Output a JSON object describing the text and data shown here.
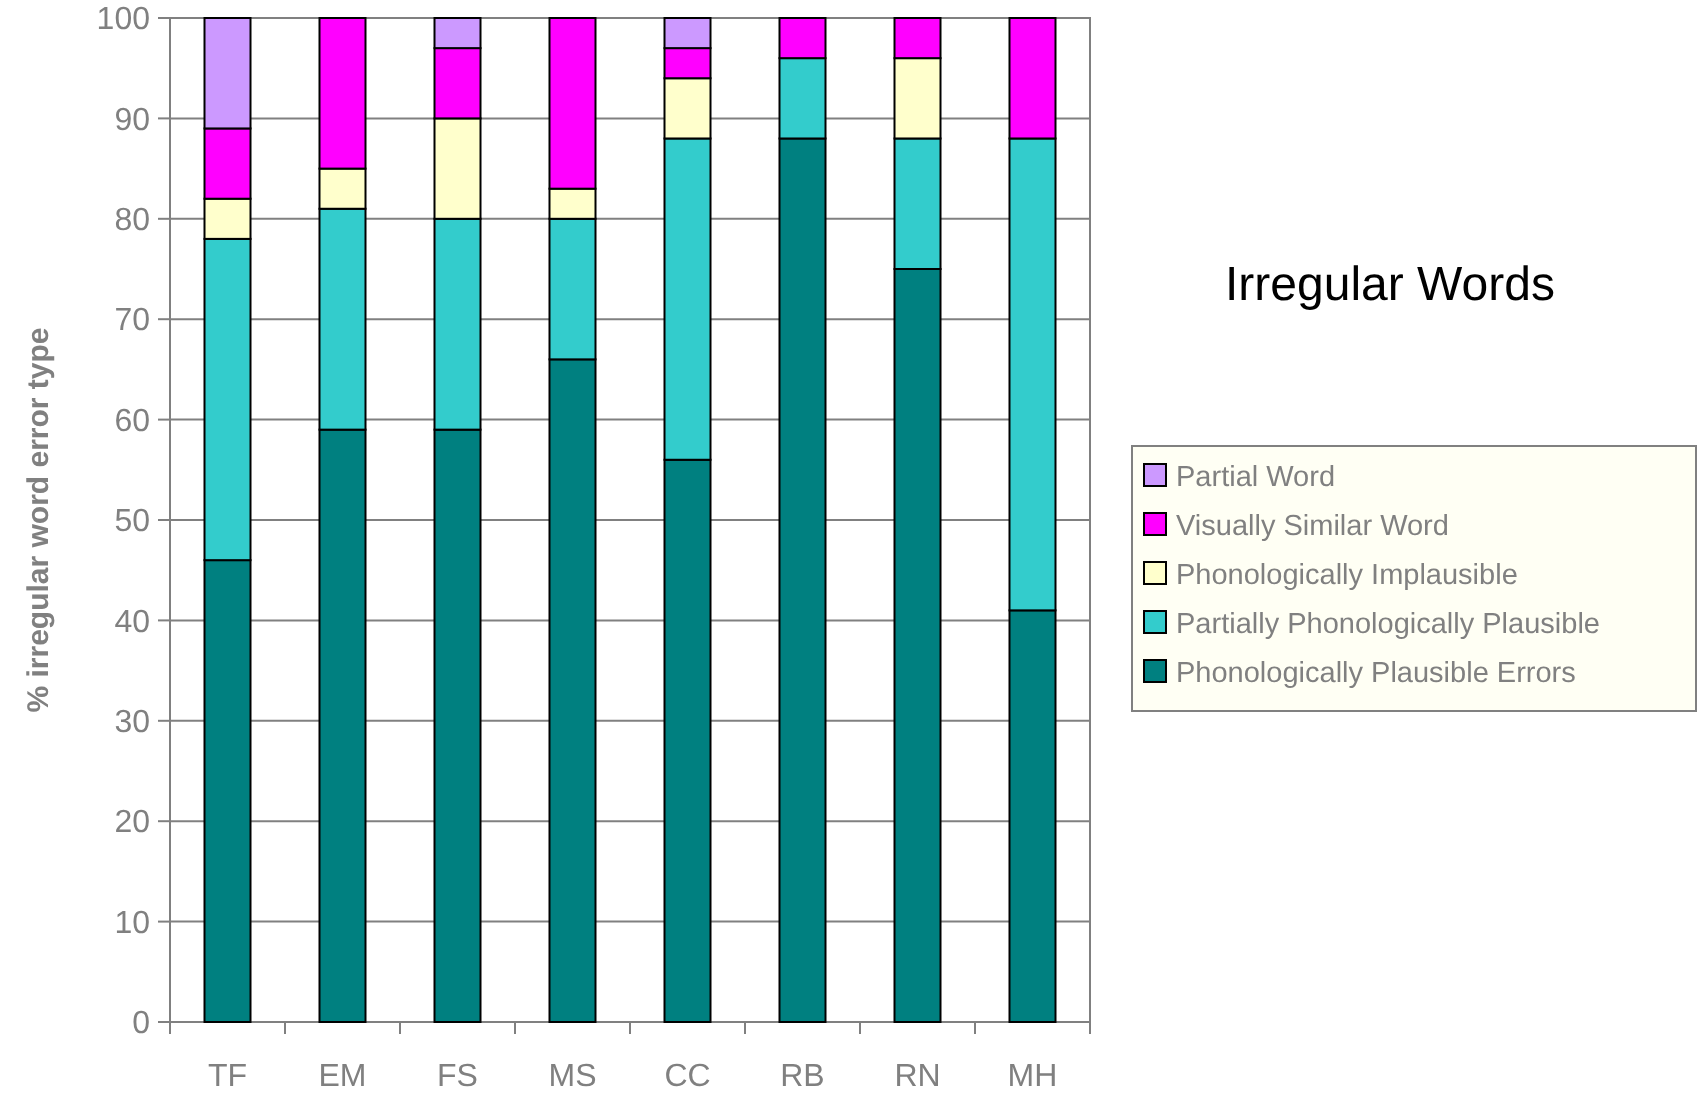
{
  "chart_data": {
    "type": "bar",
    "title": "Irregular Words",
    "ylabel": "% irregular word error type",
    "categories": [
      "TF",
      "EM",
      "FS",
      "MS",
      "CC",
      "RB",
      "RN",
      "MH"
    ],
    "stacked": true,
    "ylim": [
      0,
      100
    ],
    "yticks": [
      0,
      10,
      20,
      30,
      40,
      50,
      60,
      70,
      80,
      90,
      100
    ],
    "grid": "y",
    "legend": "right",
    "series": [
      {
        "name": "Phonologically Plausible Errors",
        "color": "#008080",
        "values": [
          46,
          59,
          59,
          66,
          56,
          88,
          75,
          41
        ]
      },
      {
        "name": "Partially Phonologically Plausible",
        "color": "#33cccc",
        "values": [
          32,
          22,
          21,
          14,
          32,
          8,
          13,
          47
        ]
      },
      {
        "name": "Phonologically Implausible",
        "color": "#ffffcc",
        "values": [
          4,
          4,
          10,
          3,
          6,
          0,
          8,
          0
        ]
      },
      {
        "name": "Visually Similar Word",
        "color": "#ff00ff",
        "values": [
          7,
          15,
          7,
          17,
          3,
          4,
          4,
          12
        ]
      },
      {
        "name": "Partial Word",
        "color": "#cc99ff",
        "values": [
          11,
          0,
          3,
          0,
          3,
          0,
          0,
          0
        ]
      }
    ]
  }
}
